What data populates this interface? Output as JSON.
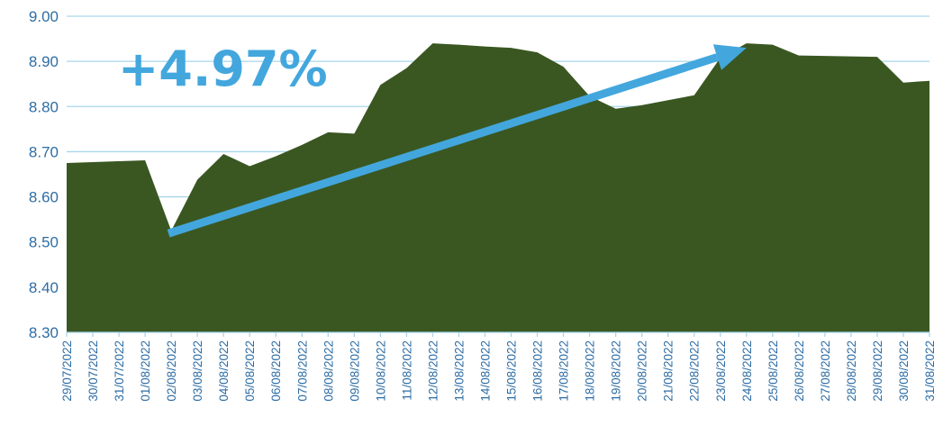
{
  "chart_data": {
    "type": "area",
    "x": [
      "29/07/2022",
      "30/07/2022",
      "31/07/2022",
      "01/08/2022",
      "02/08/2022",
      "03/08/2022",
      "04/08/2022",
      "05/08/2022",
      "06/08/2022",
      "07/08/2022",
      "08/08/2022",
      "09/08/2022",
      "10/08/2022",
      "11/08/2022",
      "12/08/2022",
      "13/08/2022",
      "14/08/2022",
      "15/08/2022",
      "16/08/2022",
      "17/08/2022",
      "18/08/2022",
      "19/08/2022",
      "20/08/2022",
      "21/08/2022",
      "22/08/2022",
      "23/08/2022",
      "24/08/2022",
      "25/08/2022",
      "26/08/2022",
      "27/08/2022",
      "28/08/2022",
      "29/08/2022",
      "30/08/2022",
      "31/08/2022"
    ],
    "series": [
      {
        "values": [
          8.675,
          8.677,
          8.679,
          8.681,
          8.525,
          8.638,
          8.695,
          8.668,
          8.69,
          8.715,
          8.743,
          8.74,
          8.848,
          8.885,
          8.94,
          8.937,
          8.933,
          8.93,
          8.92,
          8.888,
          8.823,
          8.795,
          8.803,
          8.814,
          8.825,
          8.908,
          8.94,
          8.937,
          8.913,
          8.912,
          8.911,
          8.91,
          8.853,
          8.857
        ]
      }
    ],
    "ylim": [
      8.3,
      9.0
    ],
    "yticks": [
      "8.30",
      "8.40",
      "8.50",
      "8.60",
      "8.70",
      "8.80",
      "8.90",
      "9.00"
    ],
    "grid": true,
    "colors": {
      "area": "#3a5722",
      "grid": "#a9d6ec",
      "arrow": "#43a7dd",
      "annotation": "#43a7dd"
    },
    "annotation": {
      "text": "+4.97%",
      "arrow_from": {
        "x": "02/08/2022",
        "y": 8.525
      },
      "arrow_to": {
        "x": "24/08/2022",
        "y": 8.94
      }
    }
  }
}
